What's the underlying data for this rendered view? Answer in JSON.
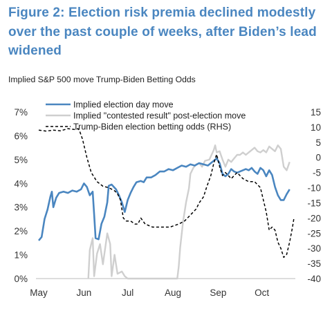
{
  "header": {
    "title_lines": [
      "Figure 2: Election risk premia declined modestly",
      "over the past couple of weeks, after Biden’s lead",
      "widened"
    ],
    "subtitle": "Implied S&P 500 move Trump-Biden Betting Odds"
  },
  "colors": {
    "title": "#4a86c0",
    "series_election_day": "#4a86c0",
    "series_contested": "#cfcfcf",
    "series_odds": "#000000"
  },
  "chart_data": {
    "type": "line",
    "x_tick_labels": [
      "May",
      "Jun",
      "Jul",
      "Aug",
      "Sep",
      "Oct"
    ],
    "x_tick_positions": [
      0,
      31,
      61,
      92,
      123,
      153
    ],
    "x_range": [
      0,
      175
    ],
    "y_left": {
      "range": [
        0,
        7
      ],
      "ticks": [
        0,
        1,
        2,
        3,
        4,
        5,
        6,
        7
      ],
      "tick_labels": [
        "0%",
        "1%",
        "2%",
        "3%",
        "4%",
        "5%",
        "6%",
        "7%"
      ]
    },
    "y_right": {
      "range": [
        -40,
        15
      ],
      "ticks": [
        -40,
        -35,
        -30,
        -25,
        -20,
        -15,
        -10,
        -5,
        0,
        5,
        10,
        15
      ],
      "tick_labels": [
        "-40",
        "-35",
        "-30",
        "-25",
        "-20",
        "-15",
        "-10",
        "-5",
        "0",
        "5",
        "10",
        "15"
      ]
    },
    "legend": {
      "placement": "top",
      "items": [
        "Implied election day move",
        "Implied \"contested result\" post-election move",
        "Trump-Biden election betting odds (RHS)"
      ]
    },
    "series": [
      {
        "name": "Implied election day move",
        "axis": "left",
        "style": "solid",
        "points": [
          [
            0,
            1.6
          ],
          [
            2,
            1.75
          ],
          [
            4,
            2.5
          ],
          [
            6,
            2.9
          ],
          [
            8,
            3.45
          ],
          [
            9,
            3.65
          ],
          [
            10,
            3.0
          ],
          [
            12,
            3.4
          ],
          [
            14,
            3.6
          ],
          [
            17,
            3.65
          ],
          [
            20,
            3.6
          ],
          [
            23,
            3.7
          ],
          [
            26,
            3.65
          ],
          [
            29,
            3.75
          ],
          [
            31,
            4.0
          ],
          [
            33,
            3.85
          ],
          [
            35,
            3.5
          ],
          [
            37,
            3.65
          ],
          [
            38,
            2.7
          ],
          [
            39,
            1.7
          ],
          [
            41,
            1.65
          ],
          [
            43,
            2.3
          ],
          [
            45,
            2.6
          ],
          [
            47,
            3.2
          ],
          [
            48,
            3.9
          ],
          [
            50,
            3.95
          ],
          [
            53,
            3.75
          ],
          [
            55,
            3.5
          ],
          [
            57,
            3.2
          ],
          [
            59,
            2.8
          ],
          [
            61,
            3.3
          ],
          [
            63,
            3.6
          ],
          [
            65,
            3.85
          ],
          [
            67,
            4.05
          ],
          [
            70,
            4.1
          ],
          [
            72,
            4.05
          ],
          [
            74,
            4.25
          ],
          [
            77,
            4.25
          ],
          [
            80,
            4.35
          ],
          [
            83,
            4.5
          ],
          [
            86,
            4.5
          ],
          [
            89,
            4.6
          ],
          [
            92,
            4.55
          ],
          [
            95,
            4.65
          ],
          [
            98,
            4.75
          ],
          [
            101,
            4.7
          ],
          [
            104,
            4.8
          ],
          [
            107,
            4.75
          ],
          [
            110,
            4.85
          ],
          [
            113,
            4.8
          ],
          [
            116,
            4.75
          ],
          [
            118,
            4.85
          ],
          [
            120,
            4.95
          ],
          [
            122,
            5.05
          ],
          [
            124,
            4.85
          ],
          [
            126,
            4.4
          ],
          [
            128,
            4.3
          ],
          [
            130,
            4.4
          ],
          [
            132,
            4.6
          ],
          [
            134,
            4.5
          ],
          [
            136,
            4.45
          ],
          [
            138,
            4.5
          ],
          [
            140,
            4.55
          ],
          [
            142,
            4.6
          ],
          [
            144,
            4.55
          ],
          [
            146,
            4.65
          ],
          [
            148,
            4.5
          ],
          [
            150,
            4.4
          ],
          [
            152,
            4.65
          ],
          [
            154,
            4.55
          ],
          [
            156,
            4.3
          ],
          [
            158,
            4.55
          ],
          [
            160,
            4.35
          ],
          [
            162,
            3.85
          ],
          [
            164,
            3.5
          ],
          [
            166,
            3.3
          ],
          [
            168,
            3.3
          ],
          [
            170,
            3.55
          ],
          [
            172,
            3.75
          ]
        ]
      },
      {
        "name": "Implied \"contested result\" post-election move",
        "axis": "left",
        "style": "solid",
        "points": [
          [
            34,
            0
          ],
          [
            35,
            1.2
          ],
          [
            37,
            1.7
          ],
          [
            38,
            0.1
          ],
          [
            40,
            1.05
          ],
          [
            42,
            1.45
          ],
          [
            44,
            0.6
          ],
          [
            47,
            1.9
          ],
          [
            49,
            1.45
          ],
          [
            50,
            0.1
          ],
          [
            52,
            1.0
          ],
          [
            54,
            0.2
          ],
          [
            57,
            0.3
          ],
          [
            59,
            0.1
          ],
          [
            61,
            0
          ],
          [
            95,
            0
          ],
          [
            96,
            0.5
          ],
          [
            97,
            1.3
          ],
          [
            99,
            2.4
          ],
          [
            101,
            3.2
          ],
          [
            103,
            3.8
          ],
          [
            104,
            4.4
          ],
          [
            106,
            4.65
          ],
          [
            108,
            4.8
          ],
          [
            110,
            4.85
          ],
          [
            112,
            4.7
          ],
          [
            114,
            4.95
          ],
          [
            117,
            5.0
          ],
          [
            120,
            5.4
          ],
          [
            121,
            5.6
          ],
          [
            122,
            5.3
          ],
          [
            124,
            5.35
          ],
          [
            126,
            5.0
          ],
          [
            128,
            4.7
          ],
          [
            130,
            5.0
          ],
          [
            132,
            4.9
          ],
          [
            134,
            5.05
          ],
          [
            136,
            5.2
          ],
          [
            138,
            5.2
          ],
          [
            140,
            5.3
          ],
          [
            142,
            5.2
          ],
          [
            144,
            5.3
          ],
          [
            146,
            5.4
          ],
          [
            148,
            5.5
          ],
          [
            150,
            5.35
          ],
          [
            152,
            5.3
          ],
          [
            154,
            5.4
          ],
          [
            156,
            5.3
          ],
          [
            158,
            5.55
          ],
          [
            160,
            5.45
          ],
          [
            162,
            5.35
          ],
          [
            164,
            5.6
          ],
          [
            166,
            5.45
          ],
          [
            168,
            4.7
          ],
          [
            170,
            4.55
          ],
          [
            172,
            4.9
          ]
        ]
      },
      {
        "name": "Trump-Biden election betting odds (RHS)",
        "axis": "right",
        "style": "dashed",
        "points": [
          [
            0,
            9
          ],
          [
            5,
            8.7
          ],
          [
            10,
            9
          ],
          [
            15,
            8.8
          ],
          [
            20,
            9.5
          ],
          [
            25,
            9.2
          ],
          [
            27,
            9.5
          ],
          [
            28,
            8.8
          ],
          [
            30,
            6
          ],
          [
            33,
            0
          ],
          [
            36,
            -5
          ],
          [
            40,
            -8
          ],
          [
            44,
            -9.5
          ],
          [
            48,
            -10
          ],
          [
            52,
            -11
          ],
          [
            54,
            -12
          ],
          [
            56,
            -14
          ],
          [
            57,
            -17
          ],
          [
            58,
            -20
          ],
          [
            60,
            -21
          ],
          [
            63,
            -21
          ],
          [
            66,
            -22
          ],
          [
            68,
            -22
          ],
          [
            70,
            -20
          ],
          [
            73,
            -22
          ],
          [
            78,
            -23
          ],
          [
            84,
            -23
          ],
          [
            90,
            -23
          ],
          [
            96,
            -22
          ],
          [
            100,
            -21
          ],
          [
            104,
            -19
          ],
          [
            106,
            -18
          ],
          [
            108,
            -17
          ],
          [
            110,
            -15
          ],
          [
            113,
            -13
          ],
          [
            115,
            -10
          ],
          [
            118,
            -6
          ],
          [
            120,
            -2
          ],
          [
            122,
            1
          ],
          [
            124,
            -3
          ],
          [
            126,
            -6
          ],
          [
            128,
            -5
          ],
          [
            132,
            -7
          ],
          [
            136,
            -5
          ],
          [
            140,
            -7
          ],
          [
            144,
            -8
          ],
          [
            148,
            -8
          ],
          [
            150,
            -9
          ],
          [
            152,
            -10
          ],
          [
            154,
            -14
          ],
          [
            156,
            -18
          ],
          [
            158,
            -24
          ],
          [
            160,
            -23
          ],
          [
            162,
            -24
          ],
          [
            164,
            -28
          ],
          [
            166,
            -30
          ],
          [
            168,
            -33
          ],
          [
            170,
            -32
          ],
          [
            172,
            -28
          ],
          [
            174,
            -23
          ],
          [
            175,
            -20
          ]
        ]
      }
    ]
  }
}
